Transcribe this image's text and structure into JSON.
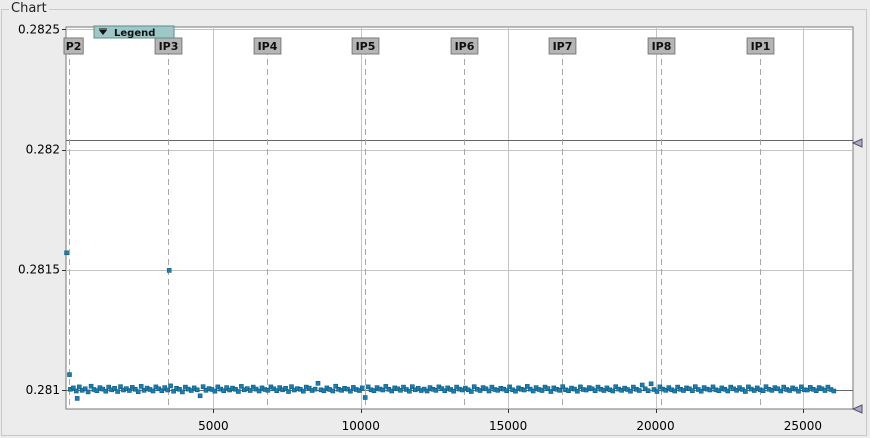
{
  "panel": {
    "title": "Chart"
  },
  "legend": {
    "label": "Legend"
  },
  "colors": {
    "point": "#1a7fb0",
    "point_edge": "#0d5a80",
    "grid": "#c4c4c4",
    "marker_bg": "#b5b5b5",
    "legend_bg": "#9ec8c8",
    "handle": "#a9a5d6"
  },
  "chart_data": {
    "type": "scatter",
    "xlim": [
      0,
      26700
    ],
    "ylim": [
      0.28092,
      0.28251
    ],
    "x_ticks": [
      5000,
      10000,
      15000,
      20000,
      25000
    ],
    "x_tick_labels": [
      "5000",
      "10000",
      "15000",
      "20000",
      "25000"
    ],
    "y_ticks": [
      0.281,
      0.2815,
      0.282,
      0.2825
    ],
    "y_tick_labels": [
      "0.281",
      "0.2815",
      "0.282",
      "0.2825"
    ],
    "grid": true,
    "legend_position": "top-left",
    "baseline": 0.281,
    "markers": [
      {
        "label": "P2",
        "x": 100
      },
      {
        "label": "IP3",
        "x": 3460
      },
      {
        "label": "IP4",
        "x": 6830
      },
      {
        "label": "IP5",
        "x": 10160
      },
      {
        "label": "IP6",
        "x": 13500
      },
      {
        "label": "IP7",
        "x": 16840
      },
      {
        "label": "IP8",
        "x": 20180
      },
      {
        "label": "IP1",
        "x": 23530
      }
    ],
    "outliers": [
      {
        "x": 20,
        "y": 0.28157
      },
      {
        "x": 3500,
        "y": 0.281497
      },
      {
        "x": 120,
        "y": 0.281063
      },
      {
        "x": 380,
        "y": 0.280964
      }
    ],
    "series": [
      {
        "x_start": 150,
        "x_step": 100,
        "y": [
          0.281002,
          0.281008,
          0.280995,
          0.281012,
          0.280998,
          0.281004,
          0.280991,
          0.281015,
          0.281001,
          0.280996,
          0.281009,
          0.281003,
          0.280994,
          0.281011,
          0.281,
          0.281006,
          0.280993,
          0.281013,
          0.280999,
          0.281005,
          0.280997,
          0.28101,
          0.281002,
          0.280992,
          0.281014,
          0.280998,
          0.281007,
          0.281001,
          0.280995,
          0.281012,
          0.281004,
          0.280996,
          0.281009,
          0.280999,
          0.281016,
          0.280994,
          0.281006,
          0.281002,
          0.280991,
          0.281011,
          0.281003,
          0.280997,
          0.281008,
          0.281,
          0.280975,
          0.281013,
          0.280998,
          0.281005,
          0.281001,
          0.280994,
          0.281012,
          0.281003,
          0.280996,
          0.281009,
          0.280999,
          0.281007,
          0.281002,
          0.280993,
          0.281014,
          0.281,
          0.281005,
          0.280997,
          0.281011,
          0.281003,
          0.280995,
          0.281008,
          0.281001,
          0.280998,
          0.281012,
          0.281004,
          0.280996,
          0.281009,
          0.281,
          0.281006,
          0.280993,
          0.281013,
          0.280999,
          0.281005,
          0.281002,
          0.280994,
          0.281011,
          0.281007,
          0.280997,
          0.281003,
          0.281027,
          0.281,
          0.280996,
          0.281008,
          0.281001,
          0.280995,
          0.281015,
          0.281002,
          0.280998,
          0.281006,
          0.281003,
          0.280994,
          0.28101,
          0.281001,
          0.280997,
          0.281008,
          0.280968,
          0.281012,
          0.281,
          0.280996,
          0.281009,
          0.281003,
          0.280999,
          0.281014,
          0.281002,
          0.280995,
          0.281008,
          0.281004,
          0.280998,
          0.281011,
          0.281001,
          0.280994,
          0.281013,
          0.281,
          0.281006,
          0.280997,
          0.281003,
          0.280995,
          0.281009,
          0.281002,
          0.280998,
          0.281012,
          0.281005,
          0.280996,
          0.281008,
          0.281001,
          0.280994,
          0.281011,
          0.281003,
          0.280999,
          0.281007,
          0.281,
          0.280993,
          0.281013,
          0.281002,
          0.280997,
          0.281009,
          0.281004,
          0.280995,
          0.281011,
          0.281001,
          0.280998,
          0.281006,
          0.281003,
          0.280996,
          0.281012,
          0.281,
          0.280994,
          0.281008,
          0.281002,
          0.280999,
          0.281014,
          0.281003,
          0.280995,
          0.281009,
          0.281001,
          0.280997,
          0.281011,
          0.281005,
          0.280993,
          0.281008,
          0.281002,
          0.280998,
          0.281013,
          0.281,
          0.280996,
          0.281007,
          0.281003,
          0.280994,
          0.281012,
          0.281001,
          0.280999,
          0.281009,
          0.281004,
          0.280996,
          0.281011,
          0.281002,
          0.280997,
          0.281008,
          0.281,
          0.280995,
          0.281013,
          0.281003,
          0.280998,
          0.281007,
          0.281001,
          0.280994,
          0.281011,
          0.281002,
          0.280997,
          0.28102,
          0.281004,
          0.280996,
          0.281025,
          0.281001,
          0.280993,
          0.281012,
          0.281003,
          0.280998,
          0.281009,
          0.281,
          0.280995,
          0.281011,
          0.281002,
          0.280997,
          0.281008,
          0.281004,
          0.280996,
          0.281013,
          0.281001,
          0.280994,
          0.281009,
          0.281003,
          0.280999,
          0.281012,
          0.281,
          0.280996,
          0.281008,
          0.281002,
          0.280995,
          0.281011,
          0.281004,
          0.280998,
          0.281009,
          0.281001,
          0.280993,
          0.281012,
          0.281003,
          0.280997,
          0.281008,
          0.281,
          0.280996,
          0.281013,
          0.281002,
          0.280998,
          0.281009,
          0.281004,
          0.280995,
          0.281011,
          0.281001,
          0.280997,
          0.281008,
          0.281003,
          0.280994,
          0.281012,
          0.281,
          0.280999,
          0.28101,
          0.281002,
          0.280996,
          0.281009,
          0.281004,
          0.280997,
          0.281011,
          0.281001,
          0.280995
        ]
      }
    ]
  }
}
